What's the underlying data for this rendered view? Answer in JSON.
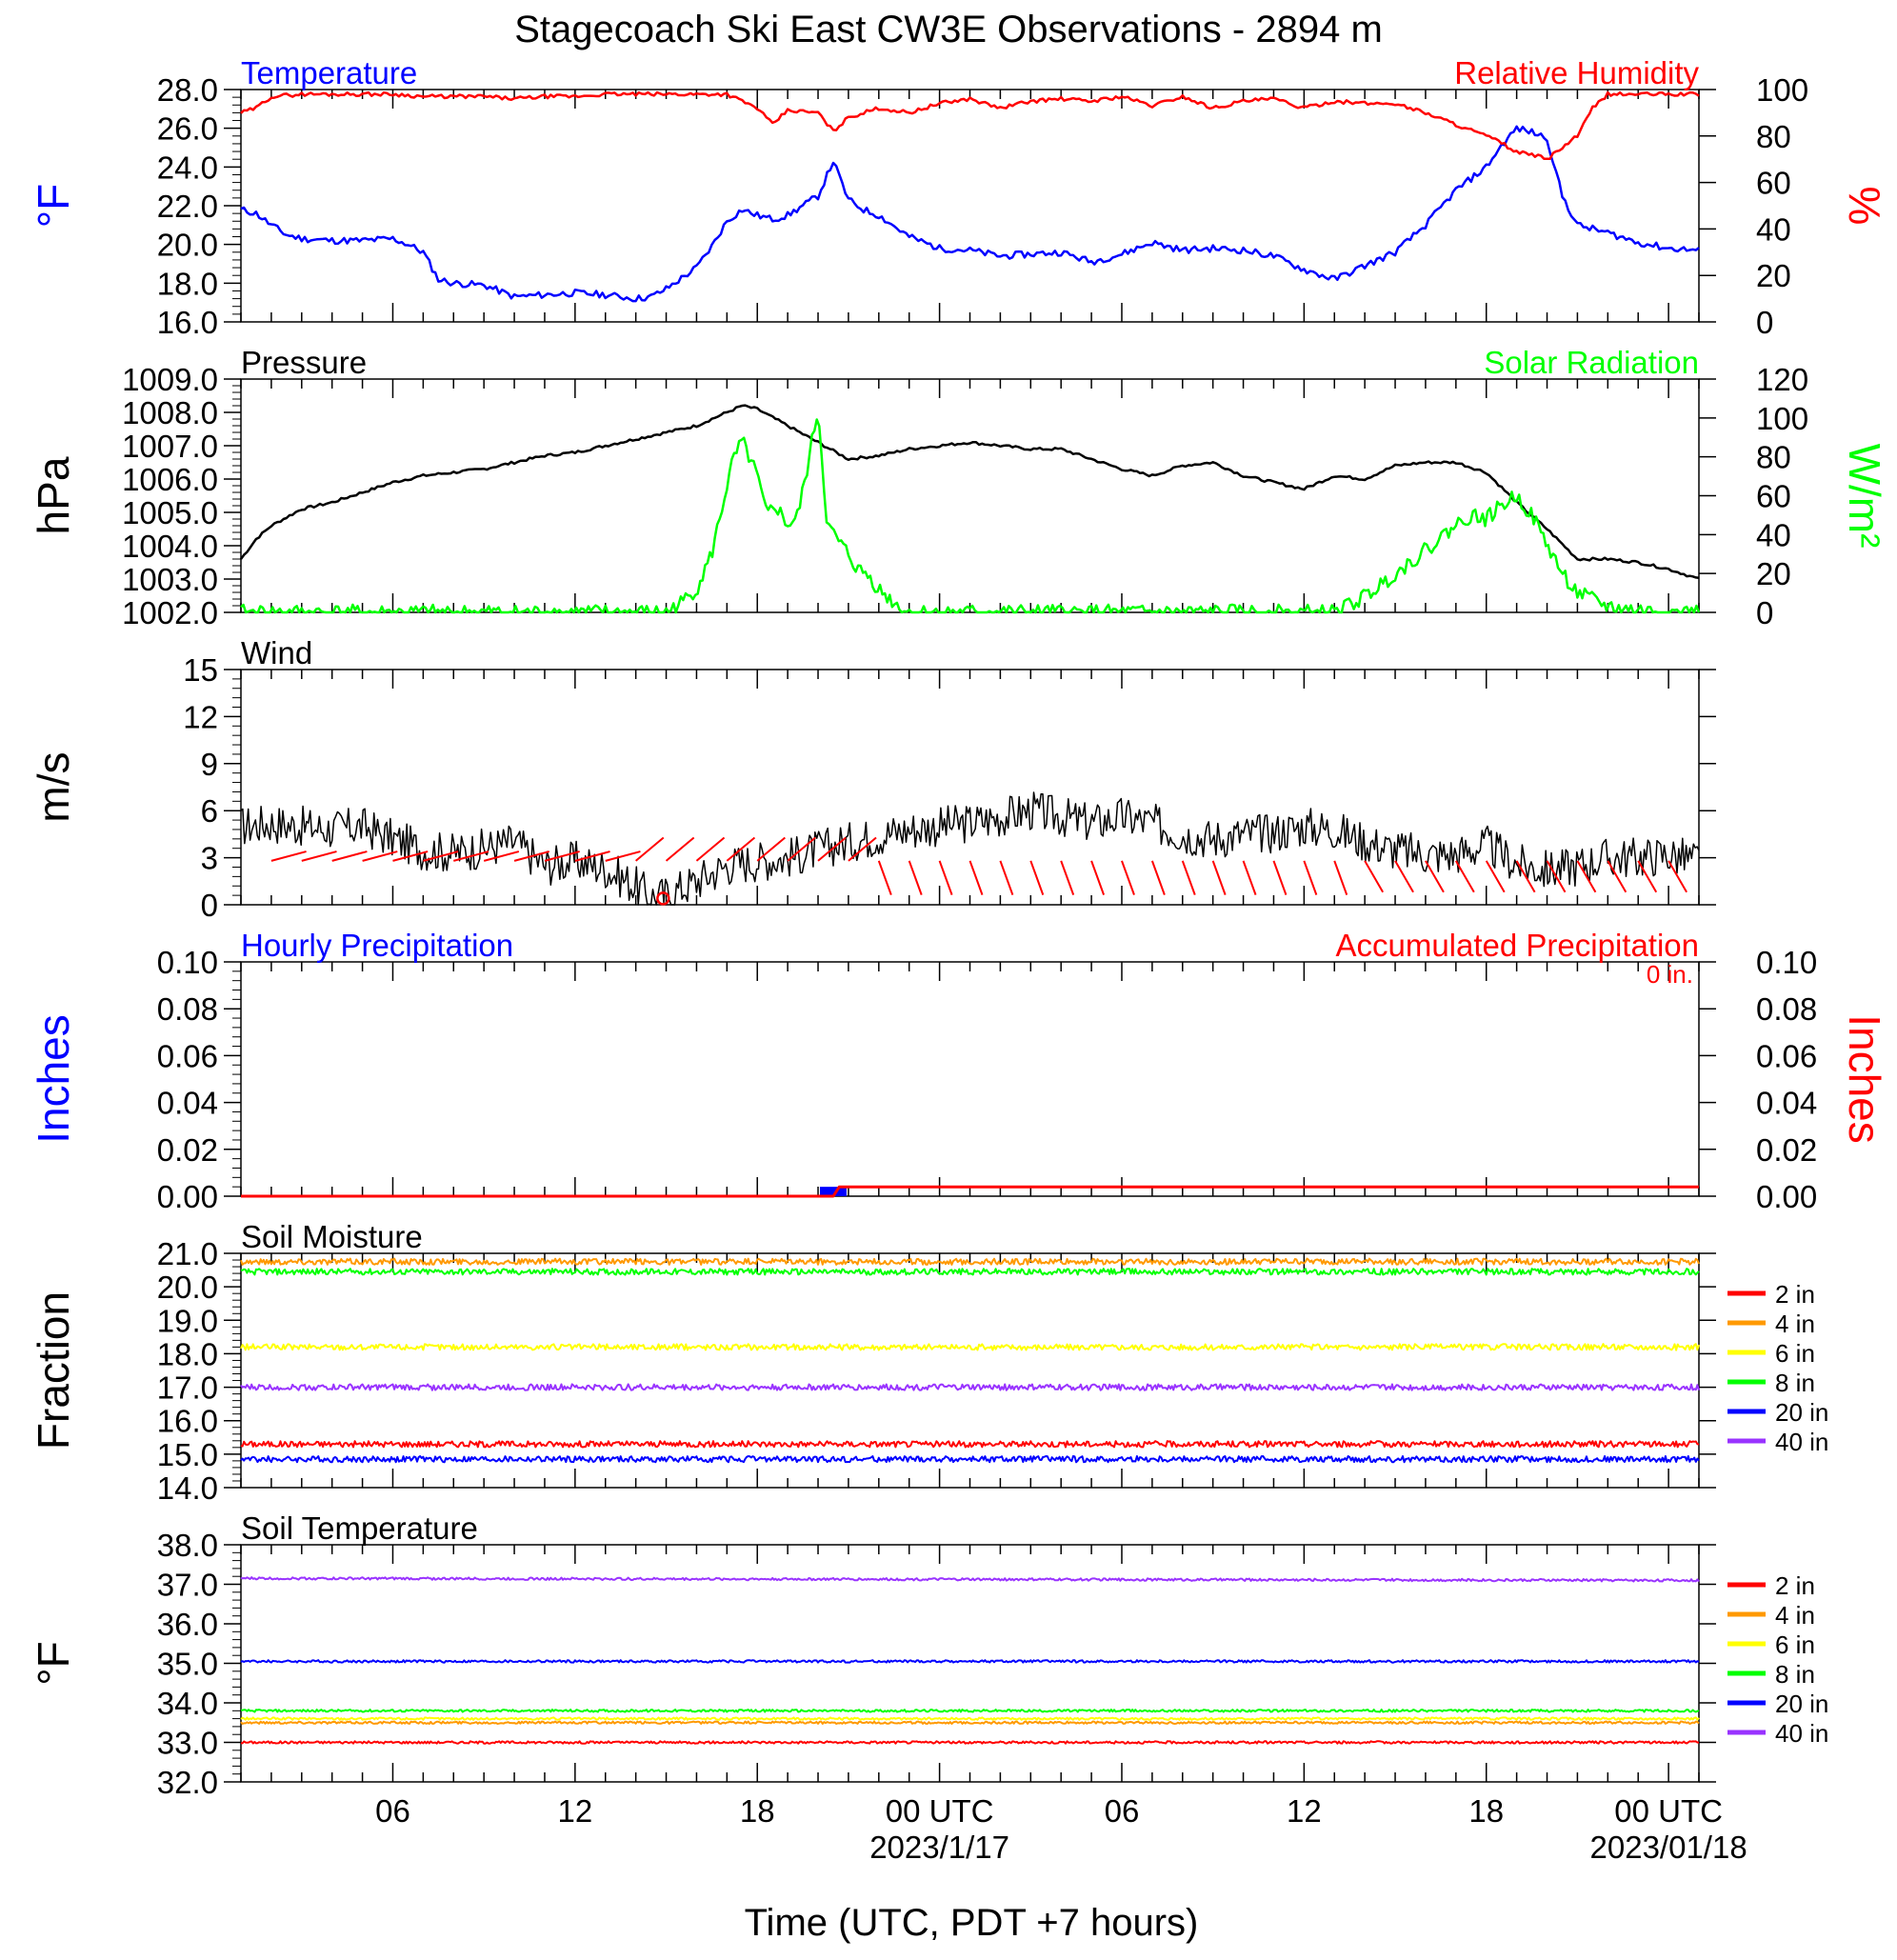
{
  "title": "Stagecoach Ski East CW3E Observations - 2894 m",
  "x_axis": {
    "title": "Time (UTC, PDT +7 hours)",
    "tick_labels": [
      "06",
      "12",
      "18",
      "00 UTC",
      "06",
      "12",
      "18",
      "00 UTC"
    ],
    "tick_hours": [
      6,
      12,
      18,
      24,
      30,
      36,
      42,
      48
    ],
    "date_labels": [
      {
        "text": "2023/1/17",
        "hour": 24
      },
      {
        "text": "2023/01/18",
        "hour": 48
      }
    ],
    "range_hours": [
      1,
      49
    ]
  },
  "colors": {
    "temperature": "#0000ff",
    "humidity": "#ff0000",
    "pressure": "#000000",
    "solar": "#00ff00",
    "wind": "#000000",
    "barbs": "#ff0000",
    "hourly_precip": "#0000ff",
    "accum_precip": "#ff0000",
    "depths": {
      "2 in": "#ff0000",
      "4 in": "#ff9900",
      "6 in": "#ffff00",
      "8 in": "#00ff00",
      "20 in": "#0000ff",
      "40 in": "#9933ff"
    }
  },
  "chart_data": [
    {
      "type": "line",
      "panel": "temperature",
      "left_label": "Temperature",
      "right_label": "Relative Humidity",
      "left_unit": "°F",
      "right_unit": "%",
      "ylim_left": [
        16,
        28
      ],
      "yticks_left": [
        "16.0",
        "18.0",
        "20.0",
        "22.0",
        "24.0",
        "26.0",
        "28.0"
      ],
      "ylim_right": [
        0,
        100
      ],
      "yticks_right": [
        "0",
        "20",
        "40",
        "60",
        "80",
        "100"
      ],
      "series": [
        {
          "name": "Temperature",
          "axis": "left",
          "x": [
            1,
            1.5,
            2,
            2.5,
            3,
            4,
            5,
            6,
            6.5,
            7,
            7.5,
            8,
            9,
            10,
            11,
            12,
            13,
            14,
            14.5,
            15,
            16,
            16.5,
            17,
            17.5,
            18,
            18.5,
            19,
            20,
            20.5,
            21,
            21.5,
            22,
            23,
            24,
            25,
            26,
            27,
            28,
            29,
            30,
            31,
            32,
            33,
            34,
            35,
            36,
            37,
            38,
            39,
            40,
            41,
            42,
            42.5,
            43,
            43.5,
            44,
            44.5,
            45,
            46,
            47,
            48,
            49
          ],
          "y": [
            21.8,
            21.6,
            21.0,
            20.5,
            20.3,
            20.2,
            20.2,
            20.3,
            20.0,
            19.6,
            18.2,
            18.0,
            17.9,
            17.3,
            17.4,
            17.5,
            17.4,
            17.2,
            17.3,
            17.7,
            18.8,
            19.9,
            21.2,
            21.8,
            21.5,
            21.3,
            21.5,
            22.5,
            24.3,
            22.3,
            21.8,
            21.5,
            20.4,
            19.8,
            19.7,
            19.4,
            19.5,
            19.6,
            19.1,
            19.5,
            20.1,
            19.7,
            19.8,
            19.7,
            19.4,
            18.7,
            18.2,
            18.9,
            19.6,
            21.0,
            22.8,
            24.0,
            25.1,
            26.0,
            25.8,
            25.5,
            22.5,
            21.0,
            20.6,
            20.1,
            19.8,
            19.7
          ]
        },
        {
          "name": "Relative Humidity",
          "axis": "right",
          "x": [
            1,
            1.5,
            2,
            3,
            4,
            5,
            6,
            7,
            8,
            9,
            10,
            11,
            12,
            13,
            14,
            15,
            16,
            17,
            18,
            18.5,
            19,
            20,
            20.5,
            21,
            22,
            23,
            24,
            25,
            26,
            27,
            28,
            29,
            30,
            31,
            32,
            33,
            34,
            35,
            36,
            37,
            38,
            39,
            40,
            41,
            42,
            42.5,
            43,
            43.5,
            44,
            44.5,
            45,
            45.5,
            46,
            47,
            48,
            49
          ],
          "y": [
            90,
            92,
            97,
            98,
            98,
            98,
            98,
            97,
            97,
            97,
            96,
            97,
            97,
            98,
            98,
            98,
            98,
            98,
            92,
            85,
            91,
            90,
            82,
            88,
            92,
            90,
            94,
            96,
            92,
            95,
            96,
            95,
            97,
            93,
            97,
            92,
            95,
            96,
            92,
            95,
            94,
            94,
            90,
            85,
            80,
            77,
            73,
            72,
            70,
            75,
            80,
            92,
            98,
            98,
            98,
            98
          ]
        }
      ]
    },
    {
      "type": "line",
      "panel": "pressure",
      "left_label": "Pressure",
      "right_label": "Solar Radiation",
      "left_unit": "hPa",
      "right_unit": "W/m²",
      "ylim_left": [
        1002,
        1009
      ],
      "yticks_left": [
        "1002.0",
        "1003.0",
        "1004.0",
        "1005.0",
        "1006.0",
        "1007.0",
        "1008.0",
        "1009.0"
      ],
      "ylim_right": [
        0,
        120
      ],
      "yticks_right": [
        "0",
        "20",
        "40",
        "60",
        "80",
        "100",
        "120"
      ],
      "series": [
        {
          "name": "Pressure",
          "axis": "left",
          "x": [
            1,
            1.5,
            2,
            3,
            4,
            5,
            6,
            7,
            8,
            9,
            10,
            11,
            12,
            13,
            14,
            15,
            16,
            17,
            17.5,
            18,
            19,
            20,
            21,
            22,
            23,
            24,
            25,
            26,
            27,
            28,
            29,
            30,
            31,
            32,
            33,
            34,
            35,
            36,
            37,
            38,
            39,
            40,
            41,
            42,
            43,
            44,
            45,
            46,
            47,
            48,
            49
          ],
          "y": [
            1003.6,
            1004.2,
            1004.6,
            1005.1,
            1005.3,
            1005.6,
            1005.9,
            1006.1,
            1006.2,
            1006.3,
            1006.5,
            1006.7,
            1006.8,
            1007.0,
            1007.2,
            1007.4,
            1007.6,
            1008.0,
            1008.2,
            1008.1,
            1007.6,
            1007.1,
            1006.6,
            1006.7,
            1006.9,
            1007.0,
            1007.1,
            1007.0,
            1006.9,
            1006.9,
            1006.6,
            1006.3,
            1006.1,
            1006.4,
            1006.5,
            1006.1,
            1005.9,
            1005.7,
            1006.1,
            1006.0,
            1006.4,
            1006.5,
            1006.5,
            1006.2,
            1005.3,
            1004.5,
            1003.6,
            1003.6,
            1003.5,
            1003.3,
            1003.0
          ]
        },
        {
          "name": "Solar Radiation",
          "axis": "right",
          "x": [
            1,
            15,
            15.5,
            16,
            16.5,
            17,
            17.2,
            17.5,
            18,
            18.3,
            18.6,
            19,
            19.3,
            19.6,
            20,
            20.3,
            20.6,
            21,
            21.3,
            21.6,
            22,
            22.5,
            23,
            24,
            37,
            38,
            39,
            40,
            41,
            41.5,
            42,
            42.5,
            43,
            43.5,
            44,
            44.5,
            45,
            46,
            47,
            48,
            49
          ],
          "y": [
            0,
            0,
            5,
            12,
            30,
            65,
            78,
            88,
            70,
            50,
            55,
            45,
            48,
            70,
            105,
            45,
            38,
            30,
            22,
            20,
            12,
            5,
            0,
            0,
            0,
            8,
            20,
            32,
            45,
            50,
            48,
            55,
            60,
            50,
            35,
            20,
            10,
            3,
            1,
            0,
            0
          ]
        }
      ]
    },
    {
      "type": "line",
      "panel": "wind",
      "left_label": "Wind",
      "left_unit": "m/s",
      "ylim_left": [
        0,
        15
      ],
      "yticks_left": [
        "0",
        "3",
        "6",
        "9",
        "12",
        "15"
      ],
      "series": [
        {
          "name": "Wind",
          "x": [
            1,
            2,
            3,
            4,
            5,
            6,
            7,
            8,
            9,
            10,
            11,
            12,
            13,
            14,
            14.5,
            15,
            16,
            17,
            18,
            19,
            20,
            21,
            22,
            23,
            24,
            25,
            26,
            27,
            28,
            29,
            30,
            31,
            32,
            33,
            34,
            35,
            36,
            37,
            38,
            39,
            40,
            41,
            42,
            43,
            44,
            45,
            46,
            47,
            48,
            49
          ],
          "y": [
            5.0,
            5.2,
            5.0,
            4.8,
            5.0,
            4.2,
            3.5,
            3.3,
            3.6,
            4.0,
            2.5,
            2.8,
            2.3,
            1.2,
            0.5,
            0.6,
            1.5,
            2.5,
            2.8,
            3.0,
            3.5,
            4.0,
            4.4,
            4.8,
            5.0,
            5.2,
            5.6,
            6.0,
            5.6,
            5.2,
            5.6,
            5.2,
            4.5,
            4.2,
            4.5,
            4.6,
            5.0,
            4.8,
            4.0,
            3.5,
            3.2,
            3.2,
            3.8,
            2.6,
            2.2,
            2.5,
            3.0,
            3.0,
            3.2,
            2.8
          ]
        }
      ]
    },
    {
      "type": "line",
      "panel": "precipitation",
      "left_label": "Hourly Precipitation",
      "right_label": "Accumulated Precipitation",
      "annotation": "0 in.",
      "left_unit": "Inches",
      "right_unit": "Inches",
      "ylim_left": [
        0,
        0.1
      ],
      "yticks_left": [
        "0.00",
        "0.02",
        "0.04",
        "0.06",
        "0.08",
        "0.10"
      ],
      "ylim_right": [
        0,
        0.1
      ],
      "yticks_right": [
        "0.00",
        "0.02",
        "0.04",
        "0.06",
        "0.08",
        "0.10"
      ],
      "series": [
        {
          "name": "Hourly Precipitation",
          "type": "bar",
          "x": [
            20.5
          ],
          "y": [
            0.004
          ]
        },
        {
          "name": "Accumulated Precipitation",
          "x": [
            1,
            20.5,
            20.7,
            49
          ],
          "y": [
            0,
            0,
            0.004,
            0.004
          ]
        }
      ]
    },
    {
      "type": "line",
      "panel": "soil_moisture",
      "left_label": "Soil Moisture",
      "left_unit": "Fraction",
      "ylim_left": [
        14,
        21
      ],
      "yticks_left": [
        "14.0",
        "15.0",
        "16.0",
        "17.0",
        "18.0",
        "19.0",
        "20.0",
        "21.0"
      ],
      "legend": [
        "2 in",
        "4 in",
        "6 in",
        "8 in",
        "20 in",
        "40 in"
      ],
      "series": [
        {
          "name": "2 in",
          "x": [
            1,
            49
          ],
          "y": [
            15.3,
            15.3
          ]
        },
        {
          "name": "4 in",
          "x": [
            1,
            49
          ],
          "y": [
            20.75,
            20.75
          ]
        },
        {
          "name": "6 in",
          "x": [
            1,
            49
          ],
          "y": [
            18.2,
            18.2
          ]
        },
        {
          "name": "8 in",
          "x": [
            1,
            49
          ],
          "y": [
            20.45,
            20.45
          ]
        },
        {
          "name": "20 in",
          "x": [
            1,
            49
          ],
          "y": [
            14.85,
            14.85
          ]
        },
        {
          "name": "40 in",
          "x": [
            1,
            49
          ],
          "y": [
            17.0,
            17.0
          ]
        }
      ]
    },
    {
      "type": "line",
      "panel": "soil_temperature",
      "left_label": "Soil Temperature",
      "left_unit": "°F",
      "ylim_left": [
        32,
        38
      ],
      "yticks_left": [
        "32.0",
        "33.0",
        "34.0",
        "35.0",
        "36.0",
        "37.0",
        "38.0"
      ],
      "legend": [
        "2 in",
        "4 in",
        "6 in",
        "8 in",
        "20 in",
        "40 in"
      ],
      "series": [
        {
          "name": "2 in",
          "x": [
            1,
            49
          ],
          "y": [
            33.0,
            33.0
          ]
        },
        {
          "name": "4 in",
          "x": [
            1,
            49
          ],
          "y": [
            33.5,
            33.5
          ]
        },
        {
          "name": "6 in",
          "x": [
            1,
            49
          ],
          "y": [
            33.6,
            33.6
          ]
        },
        {
          "name": "8 in",
          "x": [
            1,
            49
          ],
          "y": [
            33.8,
            33.8
          ]
        },
        {
          "name": "20 in",
          "x": [
            1,
            49
          ],
          "y": [
            35.05,
            35.05
          ]
        },
        {
          "name": "40 in",
          "x": [
            1,
            49
          ],
          "y": [
            37.15,
            37.1
          ]
        }
      ]
    }
  ]
}
